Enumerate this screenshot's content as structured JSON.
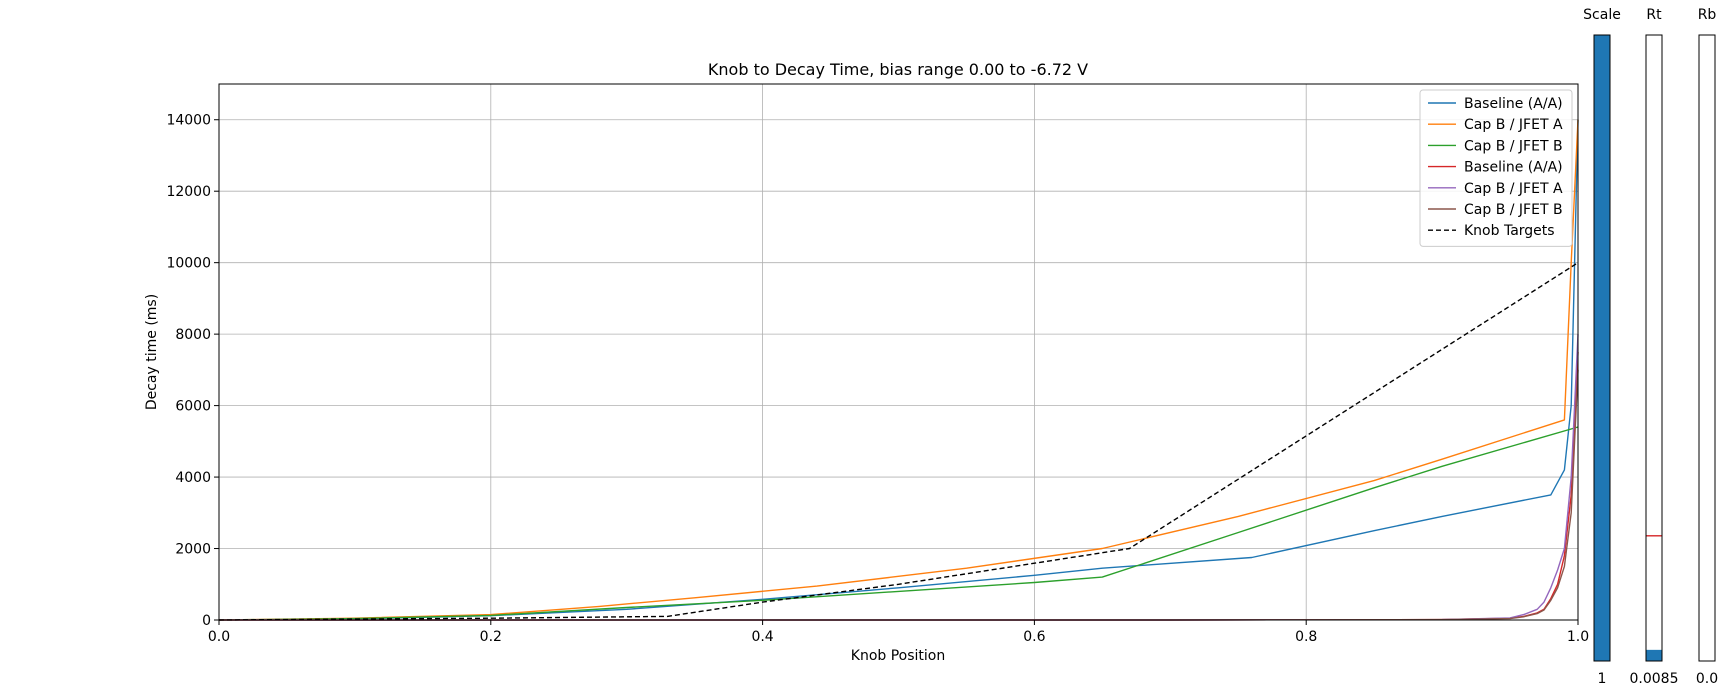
{
  "chart_data": {
    "type": "line",
    "title": "Knob to Decay Time, bias range 0.00 to -6.72 V",
    "xlabel": "Knob Position",
    "ylabel": "Decay time (ms)",
    "xlim": [
      0.0,
      1.0
    ],
    "ylim": [
      0,
      15000
    ],
    "xticks": [
      "0.0",
      "0.2",
      "0.4",
      "0.6",
      "0.8",
      "1.0"
    ],
    "xtick_values": [
      0.0,
      0.2,
      0.4,
      0.6,
      0.8,
      1.0
    ],
    "yticks": [
      "0",
      "2000",
      "4000",
      "6000",
      "8000",
      "10000",
      "12000",
      "14000"
    ],
    "ytick_values": [
      0,
      2000,
      4000,
      6000,
      8000,
      10000,
      12000,
      14000
    ],
    "grid": true,
    "legend_position": "top-right",
    "series": [
      {
        "name": "Baseline (A/A)",
        "color": "#1f77b4",
        "style": "solid",
        "x": [
          0.0,
          0.1,
          0.2,
          0.3,
          0.4,
          0.5,
          0.6,
          0.65,
          0.76,
          0.85,
          0.9,
          0.98,
          0.99,
          0.995,
          1.0
        ],
        "y": [
          0,
          30,
          120,
          300,
          580,
          900,
          1250,
          1450,
          1750,
          2500,
          2900,
          3500,
          4200,
          6000,
          14000
        ]
      },
      {
        "name": "Cap B / JFET A",
        "color": "#ff7f0e",
        "style": "solid",
        "x": [
          0.0,
          0.1,
          0.2,
          0.28,
          0.35,
          0.44,
          0.55,
          0.65,
          0.75,
          0.85,
          0.9,
          0.99,
          0.995,
          1.0
        ],
        "y": [
          0,
          50,
          150,
          380,
          620,
          950,
          1450,
          2000,
          2900,
          3900,
          4500,
          5600,
          10000,
          14000
        ]
      },
      {
        "name": "Cap B / JFET B",
        "color": "#2ca02c",
        "style": "solid",
        "x": [
          0.0,
          0.1,
          0.2,
          0.3,
          0.4,
          0.5,
          0.6,
          0.65,
          0.75,
          0.85,
          0.9,
          1.0
        ],
        "y": [
          0,
          40,
          130,
          350,
          550,
          800,
          1050,
          1200,
          2450,
          3700,
          4300,
          5400
        ]
      },
      {
        "name": "Baseline (A/A)",
        "color": "#d62728",
        "style": "solid",
        "x": [
          0.0,
          0.7,
          0.9,
          0.95,
          0.96,
          0.97,
          0.975,
          0.98,
          0.985,
          0.99,
          0.995,
          1.0
        ],
        "y": [
          0,
          0,
          10,
          50,
          100,
          200,
          300,
          600,
          1000,
          1800,
          3500,
          7500
        ]
      },
      {
        "name": "Cap B / JFET A",
        "color": "#9467bd",
        "style": "solid",
        "x": [
          0.0,
          0.7,
          0.9,
          0.95,
          0.96,
          0.97,
          0.975,
          0.98,
          0.985,
          0.99,
          0.995,
          1.0
        ],
        "y": [
          0,
          0,
          10,
          60,
          150,
          300,
          500,
          900,
          1400,
          2000,
          4000,
          8000
        ]
      },
      {
        "name": "Cap B / JFET B",
        "color": "#8c564b",
        "style": "solid",
        "x": [
          0.0,
          0.7,
          0.9,
          0.95,
          0.96,
          0.97,
          0.975,
          0.98,
          0.985,
          0.99,
          0.995,
          1.0
        ],
        "y": [
          0,
          0,
          10,
          40,
          90,
          180,
          280,
          550,
          900,
          1500,
          3000,
          7000
        ]
      },
      {
        "name": "Knob Targets",
        "color": "#000000",
        "style": "dashed",
        "x": [
          0.0,
          0.2,
          0.33,
          0.4,
          0.5,
          0.67,
          1.0
        ],
        "y": [
          0,
          50,
          100,
          500,
          1000,
          2000,
          10000
        ]
      }
    ],
    "side_bars": [
      {
        "label": "Scale",
        "value_label": "1",
        "fill_fraction": 1.0,
        "color": "#1f77b4"
      },
      {
        "label": "Rt",
        "value_label": "0.0085",
        "fill_fraction": 0.0178,
        "color": "#1f77b4",
        "marker_fraction": 0.2,
        "marker_color": "#d62728"
      },
      {
        "label": "Rb",
        "value_label": "0.0",
        "fill_fraction": 0.0,
        "color": "#1f77b4"
      }
    ]
  }
}
